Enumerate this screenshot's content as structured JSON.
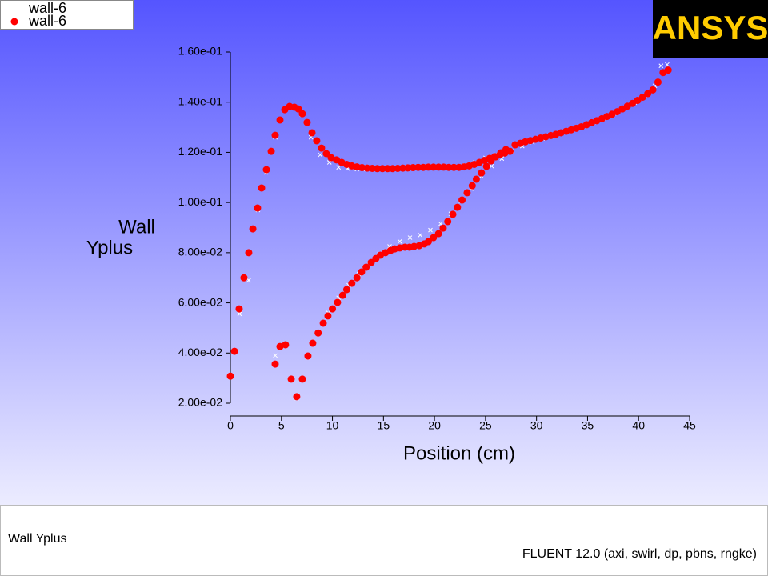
{
  "chart_data": {
    "type": "scatter",
    "logo": "ANSYS",
    "ylabel": [
      "Wall",
      "Yplus"
    ],
    "xlabel": "Position (cm)",
    "footer_left": "Wall Yplus",
    "footer_right": "FLUENT 12.0 (axi, swirl, dp, pbns, rngke)",
    "xlim": [
      0,
      45
    ],
    "xticks": [
      0,
      5,
      10,
      15,
      20,
      25,
      30,
      35,
      40,
      45
    ],
    "ylim": [
      0.02,
      0.16
    ],
    "yticks": [
      {
        "value": 0.02,
        "label": "2.00e-02"
      },
      {
        "value": 0.04,
        "label": "4.00e-02"
      },
      {
        "value": 0.06,
        "label": "6.00e-02"
      },
      {
        "value": 0.08,
        "label": "8.00e-02"
      },
      {
        "value": 0.1,
        "label": "1.00e-01"
      },
      {
        "value": 0.12,
        "label": "1.20e-01"
      },
      {
        "value": 0.14,
        "label": "1.40e-01"
      },
      {
        "value": 0.16,
        "label": "1.60e-01"
      }
    ],
    "series": [
      {
        "name": "wall-6",
        "color": "#ffffff",
        "marker": "x",
        "x": [
          0,
          0.9,
          1.8,
          2.7,
          3.5,
          4.4,
          5.3,
          6.2,
          7.0,
          7.9,
          8.8,
          9.7,
          10.6,
          11.5,
          12.4,
          13.3,
          14.2,
          15.1,
          16.0,
          17.0,
          18.0,
          19.0,
          20.0,
          21.0,
          22.0,
          23.0,
          24.0,
          25.0,
          26.0,
          4.4,
          5.4,
          6.5,
          7.6,
          8.6,
          9.6,
          10.6,
          11.6,
          12.6,
          13.6,
          14.6,
          15.6,
          16.6,
          17.6,
          18.6,
          19.6,
          20.6,
          21.6,
          22.6,
          23.6,
          24.6,
          25.6,
          26.6,
          27.6,
          28.6,
          29.6,
          30.6,
          31.6,
          32.6,
          33.6,
          34.6,
          35.6,
          36.6,
          37.6,
          38.6,
          39.6,
          40.6,
          41.6,
          42.2,
          42.8
        ],
        "values": [
          0.031,
          0.0556,
          0.069,
          0.097,
          0.112,
          0.126,
          0.137,
          0.138,
          0.135,
          0.126,
          0.119,
          0.116,
          0.114,
          0.1135,
          0.1133,
          0.1133,
          0.1133,
          0.1133,
          0.1135,
          0.1137,
          0.1139,
          0.114,
          0.1141,
          0.1141,
          0.1141,
          0.1148,
          0.116,
          0.1178,
          0.1192,
          0.039,
          0.043,
          0.022,
          0.038,
          0.048,
          0.056,
          0.062,
          0.067,
          0.0715,
          0.0755,
          0.0795,
          0.0825,
          0.0845,
          0.086,
          0.087,
          0.089,
          0.0915,
          0.0955,
          0.1005,
          0.1055,
          0.1105,
          0.1145,
          0.1175,
          0.1205,
          0.1225,
          0.124,
          0.1255,
          0.1268,
          0.128,
          0.1292,
          0.1305,
          0.132,
          0.1336,
          0.1355,
          0.1375,
          0.1398,
          0.1425,
          0.1465,
          0.1545,
          0.155
        ]
      },
      {
        "name": "wall-6",
        "color": "#ff0000",
        "marker": "dot",
        "x": [
          0,
          0.4,
          0.86,
          1.33,
          1.8,
          2.2,
          2.66,
          3.06,
          3.53,
          4.0,
          4.39,
          4.86,
          5.33,
          5.8,
          6.27,
          6.66,
          7.05,
          7.52,
          8.0,
          8.46,
          8.93,
          9.4,
          9.87,
          10.4,
          10.9,
          11.4,
          11.9,
          12.4,
          12.9,
          13.4,
          13.9,
          14.4,
          14.9,
          15.4,
          15.9,
          16.4,
          16.9,
          17.4,
          17.9,
          18.4,
          18.9,
          19.4,
          19.9,
          20.4,
          20.9,
          21.4,
          21.9,
          22.4,
          22.9,
          23.4,
          23.9,
          24.4,
          24.9,
          25.4,
          25.9,
          26.4,
          26.9,
          27.4,
          4.39,
          4.86,
          5.4,
          5.96,
          6.5,
          7.05,
          7.6,
          8.07,
          8.6,
          9.1,
          9.56,
          10.0,
          10.5,
          11.0,
          11.4,
          11.9,
          12.4,
          12.85,
          13.3,
          13.8,
          14.26,
          14.7,
          15.2,
          15.7,
          16.1,
          16.6,
          17.1,
          17.55,
          18.0,
          18.5,
          19.0,
          19.4,
          19.9,
          20.4,
          20.85,
          21.3,
          21.8,
          22.25,
          22.7,
          23.2,
          23.7,
          24.1,
          24.6,
          25.1,
          25.55,
          26.0,
          26.5,
          27.0,
          27.9,
          28.4,
          28.9,
          29.4,
          29.9,
          30.4,
          30.9,
          31.4,
          31.9,
          32.4,
          32.9,
          33.4,
          33.9,
          34.4,
          34.9,
          35.4,
          35.9,
          36.4,
          36.9,
          37.4,
          37.9,
          38.4,
          38.9,
          39.4,
          39.9,
          40.4,
          40.9,
          41.4,
          41.9,
          42.4,
          42.9
        ],
        "values": [
          0.0308,
          0.0407,
          0.0576,
          0.07,
          0.08,
          0.0895,
          0.0978,
          0.1058,
          0.1131,
          0.1204,
          0.1268,
          0.1329,
          0.137,
          0.1383,
          0.138,
          0.1373,
          0.1354,
          0.1319,
          0.1278,
          0.1246,
          0.1217,
          0.1195,
          0.1179,
          0.117,
          0.116,
          0.1152,
          0.1146,
          0.1142,
          0.1139,
          0.1137,
          0.1136,
          0.1135,
          0.1135,
          0.1135,
          0.1135,
          0.1136,
          0.1137,
          0.1138,
          0.1139,
          0.114,
          0.114,
          0.1141,
          0.1141,
          0.1141,
          0.1141,
          0.114,
          0.114,
          0.114,
          0.1142,
          0.1146,
          0.1152,
          0.116,
          0.1168,
          0.1176,
          0.1183,
          0.119,
          0.1197,
          0.1204,
          0.0356,
          0.0426,
          0.0433,
          0.0296,
          0.0226,
          0.0296,
          0.0388,
          0.0439,
          0.048,
          0.0519,
          0.0548,
          0.0576,
          0.0602,
          0.063,
          0.0653,
          0.0678,
          0.07,
          0.0723,
          0.0742,
          0.0761,
          0.0777,
          0.079,
          0.08,
          0.0809,
          0.0815,
          0.0819,
          0.0822,
          0.0822,
          0.0825,
          0.0828,
          0.0835,
          0.0844,
          0.086,
          0.0876,
          0.0898,
          0.0924,
          0.0953,
          0.0981,
          0.101,
          0.1039,
          0.1067,
          0.1093,
          0.1118,
          0.1144,
          0.1166,
          0.1182,
          0.1198,
          0.1211,
          0.123,
          0.1236,
          0.1242,
          0.1247,
          0.1252,
          0.1257,
          0.1262,
          0.1267,
          0.1272,
          0.1278,
          0.1284,
          0.129,
          0.1296,
          0.1302,
          0.131,
          0.1318,
          0.1326,
          0.1334,
          0.1343,
          0.1352,
          0.1362,
          0.1373,
          0.1384,
          0.1395,
          0.1407,
          0.142,
          0.1434,
          0.1449,
          0.148,
          0.1518,
          0.1528
        ]
      }
    ]
  }
}
